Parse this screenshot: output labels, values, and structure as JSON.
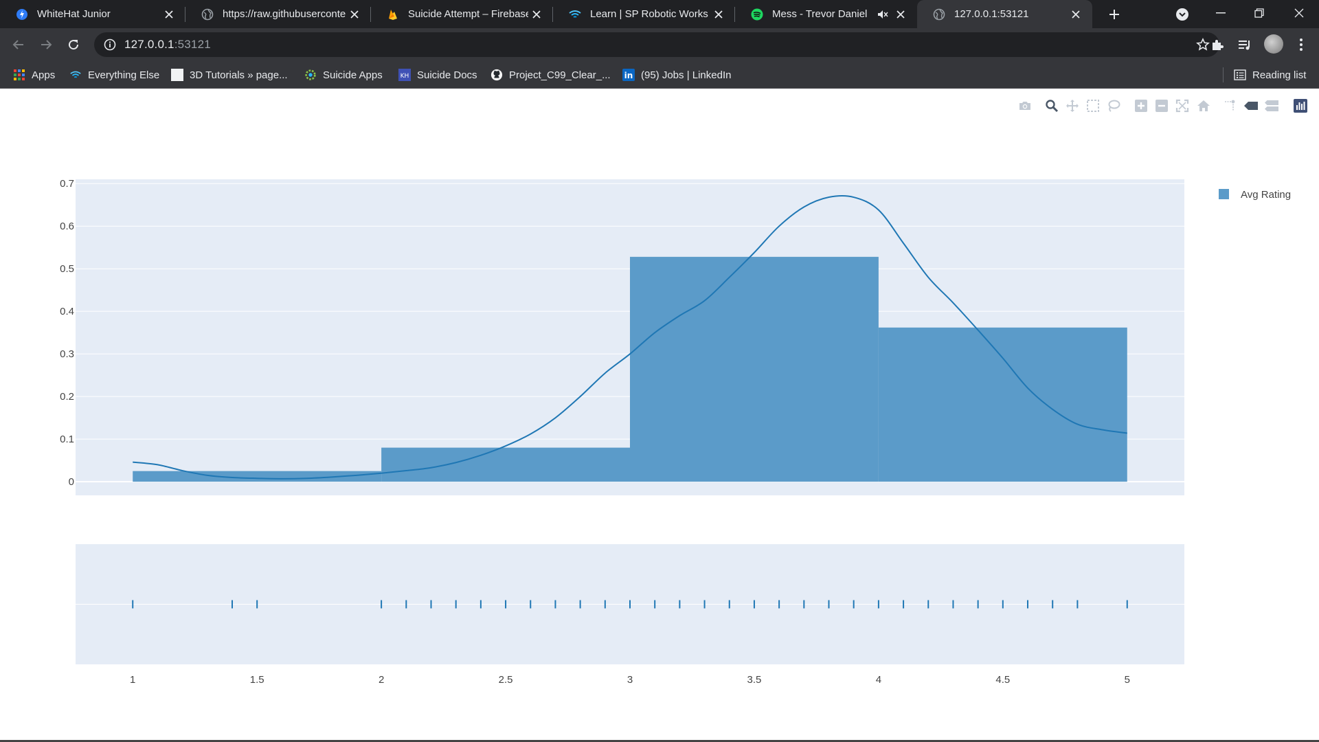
{
  "tabs": [
    {
      "title": "WhiteHat Junior",
      "icon": "whitehat-icon"
    },
    {
      "title": "https://raw.githubusercontent.com",
      "icon": "globe-icon"
    },
    {
      "title": "Suicide Attempt – Firebase",
      "icon": "firebase-icon"
    },
    {
      "title": "Learn | SP Robotic Works",
      "icon": "sp-robotic-icon"
    },
    {
      "title": "Mess - Trevor Daniel",
      "icon": "spotify-icon"
    },
    {
      "title": "127.0.0.1:53121",
      "icon": "globe-icon"
    }
  ],
  "address": {
    "host": "127.0.0.1",
    "port": ":53121"
  },
  "bookmarks": [
    {
      "label": "Apps",
      "icon": "apps-grid-icon"
    },
    {
      "label": "Everything Else",
      "icon": "sp-robotic-icon"
    },
    {
      "label": "3D Tutorials » page...",
      "icon": "blank-page-icon"
    },
    {
      "label": "Suicide Apps",
      "icon": "app-inventor-icon"
    },
    {
      "label": "Suicide Docs",
      "icon": "kodular-icon"
    },
    {
      "label": "Project_C99_Clear_...",
      "icon": "github-icon"
    },
    {
      "label": "(95) Jobs | LinkedIn",
      "icon": "linkedin-icon"
    }
  ],
  "reading_list": "Reading list",
  "modebar_icons": [
    "camera-icon",
    "zoom-icon",
    "pan-icon",
    "box-select-icon",
    "lasso-icon",
    "zoom-in-icon",
    "zoom-out-icon",
    "autoscale-icon",
    "reset-axes-icon",
    "spike-lines-icon",
    "hover-closest-icon",
    "hover-compare-icon",
    "plotly-logo-icon"
  ],
  "colors": {
    "bar": "#5b9bc9",
    "line": "#1f77b4",
    "plot_bg": "#e5ecf6",
    "rug": "#1f77b4"
  },
  "chart_data": {
    "type": "bar",
    "subtype": "distplot (histogram + kde + rug)",
    "legend": {
      "entries": [
        "Avg Rating"
      ],
      "placement": "top-right"
    },
    "xlim": [
      0.77,
      5.23
    ],
    "ylim": [
      -0.032,
      0.71
    ],
    "x_ticks": [
      "1",
      "1.5",
      "2",
      "2.5",
      "3",
      "3.5",
      "4",
      "4.5",
      "5"
    ],
    "y_ticks": [
      "0",
      "0.1",
      "0.2",
      "0.3",
      "0.4",
      "0.5",
      "0.6",
      "0.7"
    ],
    "grid": true,
    "series": [
      {
        "name": "Avg Rating",
        "kind": "histogram",
        "bins": [
          {
            "x0": 1,
            "x1": 2,
            "value": 0.025
          },
          {
            "x0": 2,
            "x1": 3,
            "value": 0.08
          },
          {
            "x0": 3,
            "x1": 4,
            "value": 0.528
          },
          {
            "x0": 4,
            "x1": 5,
            "value": 0.362
          }
        ]
      },
      {
        "kind": "kde",
        "x": [
          1.0,
          1.1,
          1.2,
          1.3,
          1.4,
          1.5,
          1.6,
          1.7,
          1.8,
          1.9,
          2.0,
          2.1,
          2.2,
          2.3,
          2.4,
          2.5,
          2.6,
          2.7,
          2.8,
          2.9,
          3.0,
          3.1,
          3.2,
          3.3,
          3.4,
          3.5,
          3.6,
          3.7,
          3.8,
          3.9,
          4.0,
          4.1,
          4.2,
          4.3,
          4.4,
          4.5,
          4.6,
          4.7,
          4.8,
          4.9,
          5.0
        ],
        "y": [
          0.046,
          0.04,
          0.026,
          0.015,
          0.01,
          0.008,
          0.007,
          0.008,
          0.011,
          0.015,
          0.02,
          0.026,
          0.033,
          0.045,
          0.062,
          0.084,
          0.112,
          0.15,
          0.2,
          0.255,
          0.3,
          0.35,
          0.39,
          0.425,
          0.48,
          0.538,
          0.6,
          0.645,
          0.668,
          0.668,
          0.638,
          0.56,
          0.48,
          0.42,
          0.356,
          0.29,
          0.22,
          0.17,
          0.135,
          0.122,
          0.114
        ]
      },
      {
        "kind": "rug",
        "x": [
          1.0,
          1.4,
          1.5,
          2.0,
          2.1,
          2.2,
          2.3,
          2.4,
          2.5,
          2.6,
          2.7,
          2.8,
          2.9,
          3.0,
          3.1,
          3.2,
          3.3,
          3.4,
          3.5,
          3.6,
          3.7,
          3.8,
          3.9,
          4.0,
          4.1,
          4.2,
          4.3,
          4.4,
          4.5,
          4.6,
          4.7,
          4.8,
          5.0
        ]
      }
    ]
  }
}
